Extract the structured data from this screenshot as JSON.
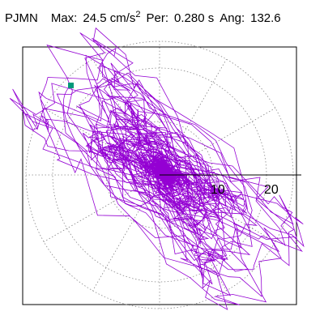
{
  "header": {
    "station": "PJMN",
    "max_label": "Max:",
    "max_value": "24.5 cm/s",
    "max_exponent": "2",
    "per_label": "Per:",
    "per_value": "0.280 s",
    "ang_label": "Ang:",
    "ang_value": "132.6"
  },
  "chart_data": {
    "type": "polar-particle-motion",
    "title": "",
    "xlabel": "",
    "ylabel": "",
    "radial_ticks": [
      10,
      20
    ],
    "radial_tick_labels": [
      "10",
      "20"
    ],
    "radial_max": 25,
    "grid": "dotted",
    "reference_line_angle_deg": 0,
    "trace_color": "#9400d3",
    "start_marker_color": "#00997a",
    "trace_summary": {
      "max_amplitude": 24.5,
      "major_axis_angle_deg": 132.6
    }
  }
}
